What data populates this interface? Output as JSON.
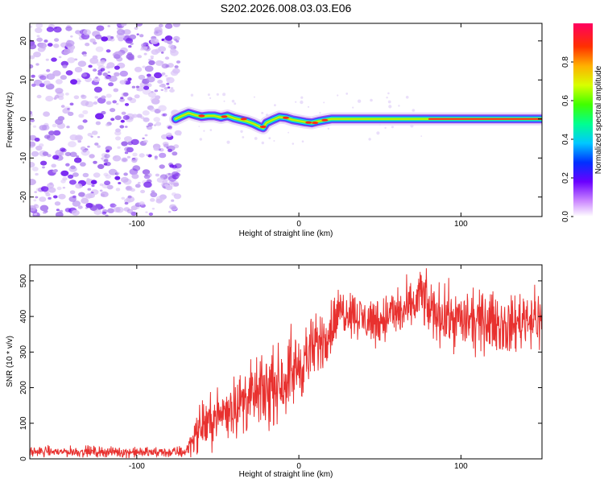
{
  "title": "S202.2026.008.03.03.E06",
  "chart_data": [
    {
      "type": "heatmap",
      "name": "spectrogram",
      "xlabel": "Height of straight line (km)",
      "ylabel": "Frequency (Hz)",
      "xlim": [
        -166,
        150
      ],
      "ylim": [
        -25,
        24.5
      ],
      "xticks": [
        -100,
        0,
        100
      ],
      "xtick_labels": [
        "-100",
        "0",
        "100"
      ],
      "yticks": [
        -20,
        -10,
        0,
        10,
        20
      ],
      "ytick_labels": [
        "-20",
        "-10",
        "0",
        "10",
        "20"
      ],
      "noise_region_x": [
        -166,
        -74
      ],
      "ridge": {
        "x": [
          -76,
          -72,
          -68,
          -64,
          -60,
          -56,
          -52,
          -48,
          -44,
          -40,
          -36,
          -32,
          -28,
          -24,
          -22,
          -20,
          -16,
          -12,
          -8,
          -4,
          0,
          4,
          8,
          12,
          16,
          20,
          30,
          40,
          50,
          60,
          70,
          80,
          100,
          120,
          150
        ],
        "y": [
          0,
          0.8,
          1.5,
          1.0,
          0.6,
          0.8,
          0.8,
          0.4,
          0.8,
          0.2,
          -0.2,
          -0.6,
          -1.2,
          -2.0,
          -2.3,
          -1.0,
          -0.2,
          0.5,
          0.3,
          -0.2,
          -0.5,
          -0.8,
          -1.0,
          -0.6,
          -0.3,
          0,
          0,
          0,
          0,
          0,
          0,
          0,
          0,
          0,
          0
        ]
      },
      "colorbar": {
        "label": "Normalized spectral amplitude",
        "range": [
          0,
          1
        ],
        "ticks": [
          0.0,
          0.2,
          0.4,
          0.6,
          0.8
        ],
        "tick_labels": [
          "0.0",
          "0.2",
          "0.4",
          "0.6",
          "0.8"
        ]
      }
    },
    {
      "type": "line",
      "name": "snr",
      "xlabel": "Height of straight line (km)",
      "ylabel": "SNR (10 * v/v)",
      "xlim": [
        -166,
        150
      ],
      "ylim": [
        0,
        545
      ],
      "xticks": [
        -100,
        0,
        100
      ],
      "xtick_labels": [
        "-100",
        "0",
        "100"
      ],
      "yticks": [
        0,
        100,
        200,
        300,
        400,
        500
      ],
      "ytick_labels": [
        "0",
        "100",
        "200",
        "300",
        "400",
        "500"
      ],
      "color": "#e8312f",
      "envelope": {
        "x": [
          -166,
          -140,
          -120,
          -100,
          -80,
          -70,
          -65,
          -60,
          -50,
          -40,
          -30,
          -20,
          -10,
          0,
          10,
          20,
          25,
          30,
          40,
          50,
          60,
          70,
          75,
          80,
          90,
          100,
          110,
          120,
          130,
          140,
          150
        ],
        "y": [
          20,
          20,
          20,
          18,
          18,
          20,
          60,
          90,
          120,
          150,
          170,
          190,
          220,
          260,
          310,
          370,
          410,
          420,
          390,
          390,
          410,
          420,
          470,
          420,
          400,
          390,
          380,
          390,
          370,
          400,
          390
        ],
        "noise_amplitude": [
          8,
          8,
          8,
          8,
          8,
          10,
          25,
          35,
          40,
          45,
          50,
          55,
          55,
          55,
          50,
          45,
          40,
          35,
          35,
          40,
          40,
          40,
          40,
          45,
          45,
          45,
          45,
          45,
          45,
          45,
          45
        ]
      }
    }
  ]
}
